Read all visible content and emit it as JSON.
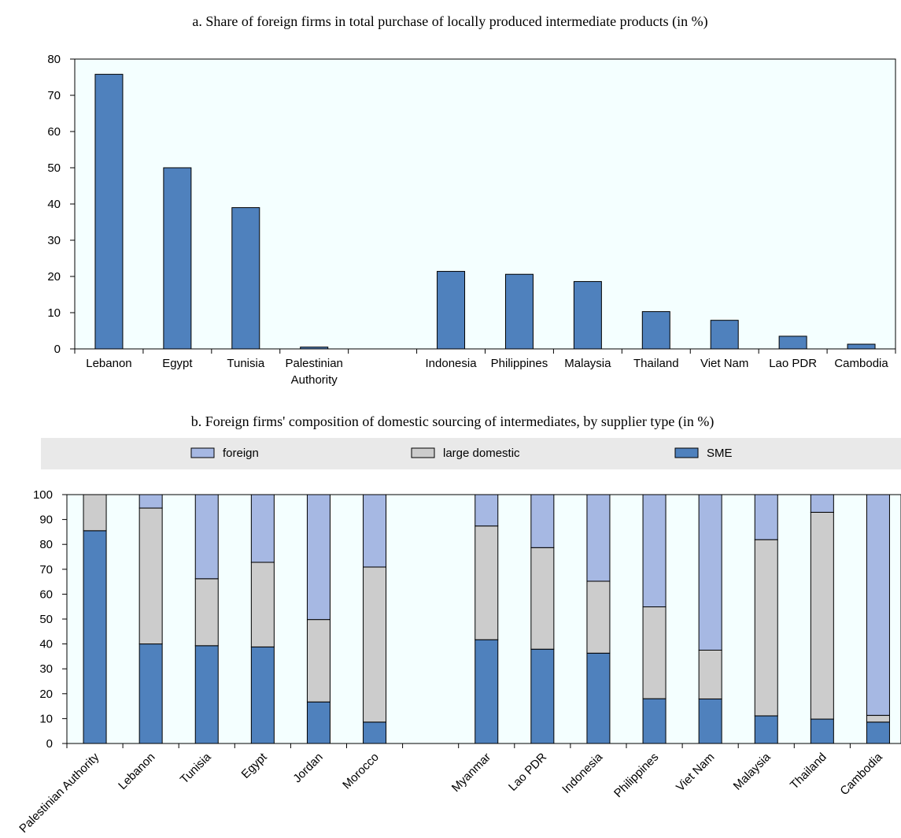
{
  "chart_data": [
    {
      "type": "bar",
      "title": "a. Share of foreign firms in total purchase of locally produced intermediate products (in %)",
      "xlabel": "",
      "ylabel": "",
      "ylim": [
        0,
        80
      ],
      "yticks": [
        0,
        10,
        20,
        30,
        40,
        50,
        60,
        70,
        80
      ],
      "grid": false,
      "categories": [
        "Lebanon",
        "Egypt",
        "Tunisia",
        "Palestinian Authority",
        "",
        "Indonesia",
        "Philippines",
        "Malaysia",
        "Thailand",
        "Viet Nam",
        "Lao PDR",
        "Cambodia"
      ],
      "category_labels": [
        [
          "Lebanon"
        ],
        [
          "Egypt"
        ],
        [
          "Tunisia"
        ],
        [
          "Palestinian",
          "Authority"
        ],
        [],
        [
          "Indonesia"
        ],
        [
          "Philippines"
        ],
        [
          "Malaysia"
        ],
        [
          "Thailand"
        ],
        [
          "Viet Nam"
        ],
        [
          "Lao PDR"
        ],
        [
          "Cambodia"
        ]
      ],
      "values": [
        75.8,
        50.0,
        39.0,
        0.5,
        null,
        21.4,
        20.6,
        18.6,
        10.3,
        7.9,
        3.5,
        1.3
      ],
      "color": "#4f81bd"
    },
    {
      "type": "bar",
      "stacked": true,
      "title": "b. Foreign firms' composition of domestic sourcing of intermediates, by supplier type (in %)",
      "xlabel": "",
      "ylabel": "",
      "ylim": [
        0,
        100
      ],
      "yticks": [
        0,
        10,
        20,
        30,
        40,
        50,
        60,
        70,
        80,
        90,
        100
      ],
      "grid": false,
      "legend_position": "top",
      "legend": [
        {
          "name": "foreign",
          "color": "#a6b8e3"
        },
        {
          "name": "large domestic",
          "color": "#cccccc"
        },
        {
          "name": "SME",
          "color": "#4f81bd"
        }
      ],
      "categories": [
        "Palestinian Authority",
        "Lebanon",
        "Tunisia",
        "Egypt",
        "Jordan",
        "Morocco",
        "",
        "Myanmar",
        "Lao PDR",
        "Indonesia",
        "Philippines",
        "Viet Nam",
        "Malaysia",
        "Thailand",
        "Cambodia"
      ],
      "series": [
        {
          "name": "SME",
          "values": [
            85.5,
            40.0,
            39.3,
            38.8,
            16.7,
            8.6,
            null,
            41.7,
            37.9,
            36.3,
            18.0,
            17.9,
            11.1,
            9.8,
            8.6
          ]
        },
        {
          "name": "large domestic",
          "values": [
            14.5,
            54.6,
            26.9,
            34.0,
            33.1,
            62.3,
            null,
            45.7,
            40.8,
            28.9,
            36.9,
            19.6,
            70.8,
            83.1,
            2.7
          ]
        },
        {
          "name": "foreign",
          "values": [
            0.0,
            5.4,
            33.8,
            27.2,
            50.2,
            29.1,
            null,
            12.6,
            21.3,
            34.8,
            45.1,
            62.5,
            18.1,
            7.1,
            88.7
          ]
        }
      ]
    }
  ]
}
